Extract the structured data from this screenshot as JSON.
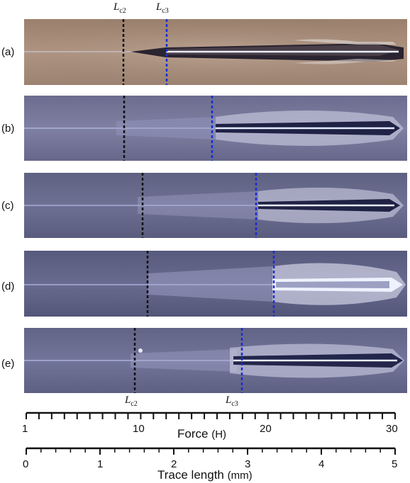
{
  "panels": [
    {
      "label": "(a)"
    },
    {
      "label": "(b)"
    },
    {
      "label": "(c)"
    },
    {
      "label": "(d)"
    },
    {
      "label": "(e)"
    }
  ],
  "critical_loads": {
    "lc2_label": "L",
    "lc2_sub": "c2",
    "lc3_label": "L",
    "lc3_sub": "c3"
  },
  "force_axis": {
    "title": "Force",
    "unit": "(H)",
    "ticks": [
      "1",
      "10",
      "20",
      "30"
    ]
  },
  "length_axis": {
    "title": "Trace length",
    "unit": "(mm)",
    "ticks": [
      "0",
      "1",
      "2",
      "3",
      "4",
      "5"
    ]
  },
  "colors": {
    "lc2_line": "#111111",
    "lc3_line": "#1a2bd6"
  }
}
